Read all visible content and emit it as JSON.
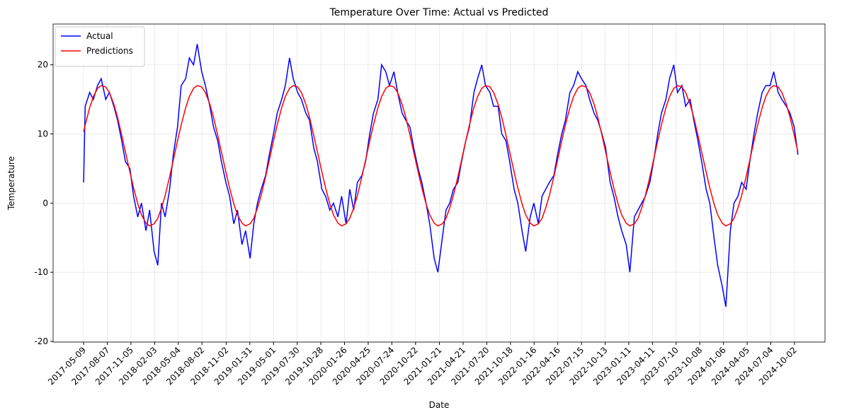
{
  "chart_data": {
    "type": "line",
    "title": "Temperature Over Time: Actual vs Predicted",
    "xlabel": "Date",
    "ylabel": "Temperature",
    "x": [
      "2017-05-09",
      "2017-05-15",
      "2017-06-01",
      "2017-06-15",
      "2017-07-01",
      "2017-07-15",
      "2017-08-01",
      "2017-08-15",
      "2017-09-01",
      "2017-09-15",
      "2017-10-01",
      "2017-10-15",
      "2017-11-01",
      "2017-11-15",
      "2017-12-01",
      "2017-12-15",
      "2018-01-01",
      "2018-01-15",
      "2018-02-01",
      "2018-02-15",
      "2018-03-01",
      "2018-03-15",
      "2018-04-01",
      "2018-04-15",
      "2018-05-01",
      "2018-05-15",
      "2018-06-01",
      "2018-06-15",
      "2018-07-01",
      "2018-07-15",
      "2018-08-01",
      "2018-08-15",
      "2018-09-01",
      "2018-09-15",
      "2018-10-01",
      "2018-10-15",
      "2018-11-01",
      "2018-11-15",
      "2018-12-01",
      "2018-12-15",
      "2019-01-01",
      "2019-01-15",
      "2019-02-01",
      "2019-02-15",
      "2019-03-01",
      "2019-03-15",
      "2019-04-01",
      "2019-04-15",
      "2019-05-01",
      "2019-05-15",
      "2019-06-01",
      "2019-06-15",
      "2019-07-01",
      "2019-07-15",
      "2019-08-01",
      "2019-08-15",
      "2019-09-01",
      "2019-09-15",
      "2019-10-01",
      "2019-10-15",
      "2019-11-01",
      "2019-11-15",
      "2019-12-01",
      "2019-12-15",
      "2020-01-01",
      "2020-01-15",
      "2020-02-01",
      "2020-02-15",
      "2020-03-01",
      "2020-03-15",
      "2020-04-01",
      "2020-04-15",
      "2020-05-01",
      "2020-05-15",
      "2020-06-01",
      "2020-06-15",
      "2020-07-01",
      "2020-07-15",
      "2020-08-01",
      "2020-08-15",
      "2020-09-01",
      "2020-09-15",
      "2020-10-01",
      "2020-10-15",
      "2020-11-01",
      "2020-11-15",
      "2020-12-01",
      "2020-12-15",
      "2021-01-01",
      "2021-01-15",
      "2021-02-01",
      "2021-02-15",
      "2021-03-01",
      "2021-03-15",
      "2021-04-01",
      "2021-04-15",
      "2021-05-01",
      "2021-05-15",
      "2021-06-01",
      "2021-06-15",
      "2021-07-01",
      "2021-07-15",
      "2021-08-01",
      "2021-08-15",
      "2021-09-01",
      "2021-09-15",
      "2021-10-01",
      "2021-10-15",
      "2021-11-01",
      "2021-11-15",
      "2021-12-01",
      "2021-12-15",
      "2022-01-01",
      "2022-01-15",
      "2022-02-01",
      "2022-02-15",
      "2022-03-01",
      "2022-03-15",
      "2022-04-01",
      "2022-04-15",
      "2022-05-01",
      "2022-05-15",
      "2022-06-01",
      "2022-06-15",
      "2022-07-01",
      "2022-07-15",
      "2022-08-01",
      "2022-08-15",
      "2022-09-01",
      "2022-09-15",
      "2022-10-01",
      "2022-10-15",
      "2022-11-01",
      "2022-11-15",
      "2022-12-01",
      "2022-12-15",
      "2023-01-01",
      "2023-01-15",
      "2023-02-01",
      "2023-02-15",
      "2023-03-01",
      "2023-03-15",
      "2023-04-01",
      "2023-04-15",
      "2023-05-01",
      "2023-05-15",
      "2023-06-01",
      "2023-06-15",
      "2023-07-01",
      "2023-07-15",
      "2023-08-01",
      "2023-08-15",
      "2023-09-01",
      "2023-09-15",
      "2023-10-01",
      "2023-10-15",
      "2023-11-01",
      "2023-11-15",
      "2023-12-01",
      "2023-12-15",
      "2024-01-01",
      "2024-01-15",
      "2024-02-01",
      "2024-02-15",
      "2024-03-01",
      "2024-03-15",
      "2024-04-01",
      "2024-04-15",
      "2024-05-01",
      "2024-05-15",
      "2024-06-01",
      "2024-06-15",
      "2024-07-01",
      "2024-07-15",
      "2024-08-01",
      "2024-08-15",
      "2024-09-01",
      "2024-09-15",
      "2024-10-01",
      "2024-10-15"
    ],
    "series": [
      {
        "name": "Actual",
        "color": "#0000ff",
        "values": [
          3,
          14,
          16,
          15,
          17,
          18,
          15,
          16,
          14,
          12,
          9,
          6,
          5,
          1,
          -2,
          0,
          -4,
          -1,
          -7,
          -9,
          0,
          -2,
          2,
          7,
          11,
          17,
          18,
          21,
          20,
          23,
          19,
          17,
          14,
          11,
          9,
          6,
          3,
          1,
          -3,
          -1,
          -6,
          -4,
          -8,
          -3,
          0,
          2,
          4,
          7,
          10,
          13,
          15,
          17,
          21,
          18,
          16,
          15,
          13,
          12,
          8,
          6,
          2,
          1,
          -1,
          0,
          -2,
          1,
          -3,
          2,
          -1,
          3,
          4,
          6,
          10,
          13,
          15,
          20,
          19,
          17,
          19,
          16,
          13,
          12,
          11,
          8,
          5,
          3,
          0,
          -3,
          -8,
          -10,
          -5,
          -1,
          0,
          2,
          3,
          6,
          9,
          11,
          16,
          18,
          20,
          17,
          16,
          14,
          14,
          10,
          9,
          6,
          2,
          0,
          -4,
          -7,
          -2,
          0,
          -3,
          1,
          2,
          3,
          4,
          7,
          10,
          12,
          16,
          17,
          19,
          18,
          17,
          15,
          13,
          12,
          10,
          8,
          3,
          1,
          -2,
          -4,
          -6,
          -10,
          -2,
          -1,
          0,
          1,
          3,
          6,
          10,
          13,
          15,
          18,
          20,
          16,
          17,
          14,
          15,
          12,
          9,
          6,
          2,
          0,
          -5,
          -9,
          -12,
          -15,
          -4,
          0,
          1,
          3,
          2,
          6,
          10,
          13,
          16,
          17,
          17,
          19,
          16,
          15,
          14,
          13,
          11,
          7
        ]
      },
      {
        "name": "Predictions",
        "color": "#ff0000",
        "values": [
          10.3,
          11.3,
          13.8,
          15.4,
          16.6,
          17.0,
          16.8,
          16.0,
          14.3,
          12.4,
          9.8,
          7.4,
          4.5,
          2.2,
          -0.1,
          -1.7,
          -2.9,
          -3.3,
          -3.0,
          -2.2,
          -0.7,
          1.1,
          3.8,
          6.2,
          9.0,
          11.3,
          13.8,
          15.4,
          16.6,
          17.0,
          16.8,
          16.0,
          14.3,
          12.4,
          9.8,
          7.4,
          4.5,
          2.2,
          -0.1,
          -1.7,
          -2.9,
          -3.3,
          -3.0,
          -2.2,
          -0.7,
          1.1,
          3.8,
          6.2,
          9.0,
          11.3,
          13.8,
          15.4,
          16.6,
          17.0,
          16.8,
          16.0,
          14.3,
          12.4,
          9.8,
          7.4,
          4.5,
          2.2,
          -0.1,
          -1.7,
          -2.9,
          -3.3,
          -3.0,
          -2.2,
          -0.7,
          1.1,
          3.8,
          6.2,
          9.0,
          11.3,
          13.8,
          15.4,
          16.6,
          17.0,
          16.8,
          16.0,
          14.3,
          12.4,
          9.8,
          7.4,
          4.5,
          2.2,
          -0.1,
          -1.7,
          -2.9,
          -3.3,
          -3.0,
          -2.2,
          -0.7,
          1.1,
          3.8,
          6.2,
          9.0,
          11.3,
          13.8,
          15.4,
          16.6,
          17.0,
          16.8,
          16.0,
          14.3,
          12.4,
          9.8,
          7.4,
          4.5,
          2.2,
          -0.1,
          -1.7,
          -2.9,
          -3.3,
          -3.0,
          -2.2,
          -0.7,
          1.1,
          3.8,
          6.2,
          9.0,
          11.3,
          13.8,
          15.4,
          16.6,
          17.0,
          16.8,
          16.0,
          14.3,
          12.4,
          9.8,
          7.4,
          4.5,
          2.2,
          -0.1,
          -1.7,
          -2.9,
          -3.3,
          -3.0,
          -2.2,
          -0.7,
          1.1,
          3.8,
          6.2,
          9.0,
          11.3,
          13.8,
          15.4,
          16.6,
          17.0,
          16.8,
          16.0,
          14.3,
          12.4,
          9.8,
          7.4,
          4.5,
          2.2,
          -0.1,
          -1.7,
          -2.9,
          -3.3,
          -3.0,
          -2.2,
          -0.7,
          1.1,
          3.8,
          6.2,
          9.0,
          11.3,
          13.8,
          15.4,
          16.6,
          17.0,
          16.8,
          16.0,
          14.3,
          12.4,
          9.8,
          7.4
        ]
      }
    ],
    "xlim": [
      "2017-01-13",
      "2025-01-26"
    ],
    "xticks": [
      "2017-05-09",
      "2017-08-07",
      "2017-11-05",
      "2018-02-03",
      "2018-05-04",
      "2018-08-02",
      "2018-11-02",
      "2019-01-31",
      "2019-05-01",
      "2019-07-30",
      "2019-10-28",
      "2020-01-26",
      "2020-04-25",
      "2020-07-24",
      "2020-10-22",
      "2021-01-21",
      "2021-04-21",
      "2021-07-20",
      "2021-10-18",
      "2022-01-16",
      "2022-04-16",
      "2022-07-15",
      "2022-10-13",
      "2023-01-11",
      "2023-04-11",
      "2023-07-10",
      "2023-10-08",
      "2024-01-06",
      "2024-04-05",
      "2024-07-04",
      "2024-10-02"
    ],
    "ylim": [
      -20.1,
      25.9
    ],
    "yticks": [
      -20,
      -10,
      0,
      10,
      20
    ],
    "grid": true,
    "legend": "upper left"
  }
}
